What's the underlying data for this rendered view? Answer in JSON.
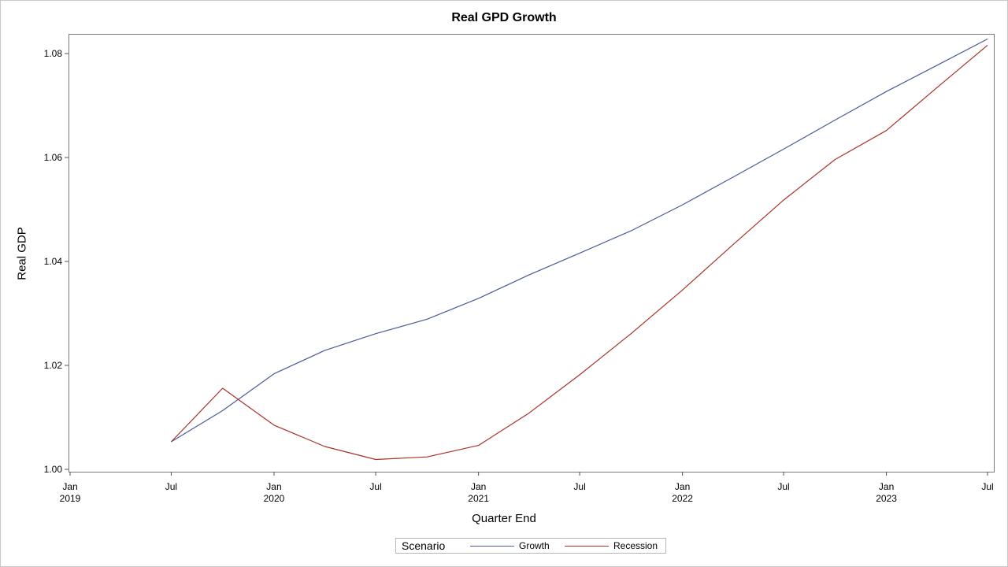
{
  "chart_data": {
    "type": "line",
    "title": "Real GPD Growth",
    "xlabel": "Quarter End",
    "ylabel": "Real GDP",
    "ylim": [
      1.0,
      1.084
    ],
    "xlim": [
      "2019-01-01",
      "2023-07-01"
    ],
    "y_ticks": [
      1.0,
      1.02,
      1.04,
      1.06,
      1.08
    ],
    "y_tick_labels": [
      "1.00",
      "1.02",
      "1.04",
      "1.06",
      "1.08"
    ],
    "x_ticks": [
      {
        "date": "2019-01-01",
        "label": "Jan",
        "year": "2019"
      },
      {
        "date": "2019-07-01",
        "label": "Jul",
        "year": ""
      },
      {
        "date": "2020-01-01",
        "label": "Jan",
        "year": "2020"
      },
      {
        "date": "2020-07-01",
        "label": "Jul",
        "year": ""
      },
      {
        "date": "2021-01-01",
        "label": "Jan",
        "year": "2021"
      },
      {
        "date": "2021-07-01",
        "label": "Jul",
        "year": ""
      },
      {
        "date": "2022-01-01",
        "label": "Jan",
        "year": "2022"
      },
      {
        "date": "2022-07-01",
        "label": "Jul",
        "year": ""
      },
      {
        "date": "2023-01-01",
        "label": "Jan",
        "year": "2023"
      },
      {
        "date": "2023-07-01",
        "label": "Jul",
        "year": ""
      }
    ],
    "x": [
      "2019-07-01",
      "2019-10-01",
      "2020-01-01",
      "2020-04-01",
      "2020-07-01",
      "2020-10-01",
      "2021-01-01",
      "2021-04-01",
      "2021-07-01",
      "2021-10-01",
      "2022-01-01",
      "2022-04-01",
      "2022-07-01",
      "2022-10-01",
      "2023-01-01",
      "2023-04-01",
      "2023-07-01"
    ],
    "series": [
      {
        "name": "Growth",
        "color": "#4a5a9a",
        "values": [
          1.0053,
          1.0113,
          1.0184,
          1.0229,
          1.0261,
          1.0289,
          1.0329,
          1.0374,
          1.0416,
          1.0459,
          1.0509,
          1.0562,
          1.0616,
          1.0672,
          1.0727,
          1.0777,
          1.0828
        ]
      },
      {
        "name": "Recession",
        "color": "#a83228",
        "values": [
          1.0053,
          1.0156,
          1.0085,
          1.0044,
          1.0019,
          1.0024,
          1.0046,
          1.0108,
          1.0182,
          1.0261,
          1.0345,
          1.0432,
          1.0518,
          1.0596,
          1.0652,
          1.0734,
          1.0816
        ]
      }
    ],
    "grid": false,
    "legend_placement": "bottom-center",
    "legend_title": "Scenario"
  }
}
